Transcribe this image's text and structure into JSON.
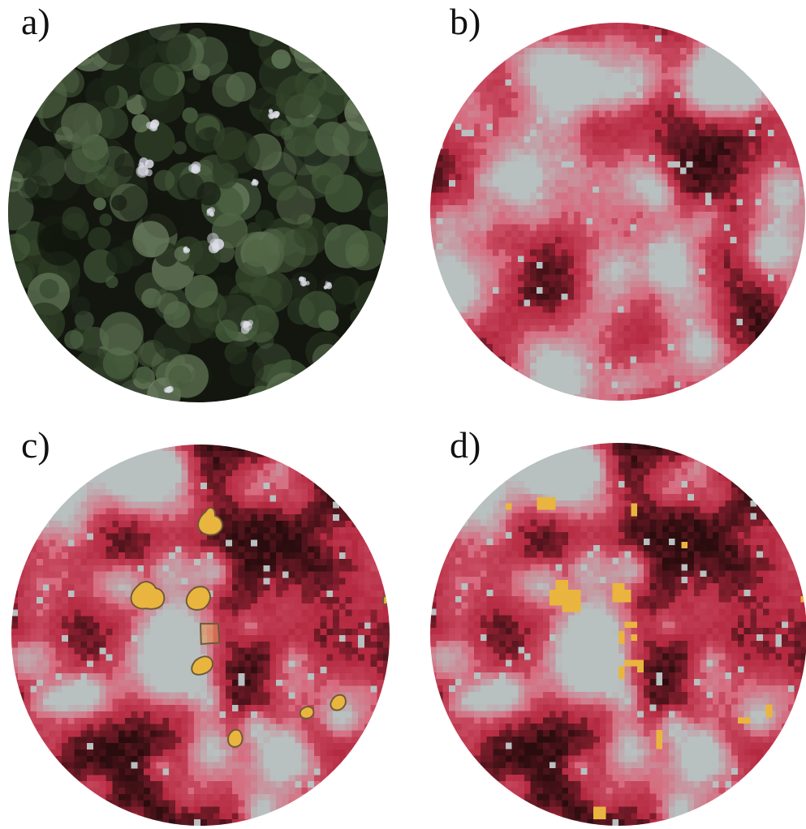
{
  "panels": [
    {
      "id": "a",
      "label": "a)",
      "imagery": "true-color-aerial"
    },
    {
      "id": "b",
      "label": "b)",
      "imagery": "false-color-infrared"
    },
    {
      "id": "c",
      "label": "c)",
      "imagery": "false-color-infrared-with-overlay"
    },
    {
      "id": "d",
      "label": "d)",
      "imagery": "false-color-infrared-with-overlay"
    }
  ],
  "colors": {
    "rgb_dark": "#0f130c",
    "rgb_canopy": "#3f5535",
    "rgb_canopy_light": "#6d8161",
    "rgb_bright": "#dcdce6",
    "ir_base": "#b4283f",
    "ir_dark": "#2a0c0e",
    "ir_light": "#d8677c",
    "ir_pale": "#b8c0c0",
    "highlight": "#eab53f",
    "highlight_edge": "#6b5a3a"
  }
}
